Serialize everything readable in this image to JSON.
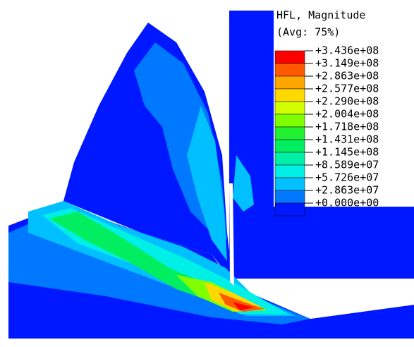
{
  "legend": {
    "title": "HFL, Magnitude",
    "subtitle": "(Avg: 75%)",
    "labels": [
      "+3.436e+08",
      "+3.149e+08",
      "+2.863e+08",
      "+2.577e+08",
      "+2.290e+08",
      "+2.004e+08",
      "+1.718e+08",
      "+1.431e+08",
      "+1.145e+08",
      "+8.589e+07",
      "+5.726e+07",
      "+2.863e+07",
      "+0.000e+00"
    ],
    "colors": [
      "#ff0000",
      "#ff5a00",
      "#ffa500",
      "#ffd800",
      "#d2ff00",
      "#80ff00",
      "#20f030",
      "#00ee60",
      "#00f0a8",
      "#00f0e8",
      "#00c0ff",
      "#0078ff",
      "#0018ff"
    ]
  }
}
